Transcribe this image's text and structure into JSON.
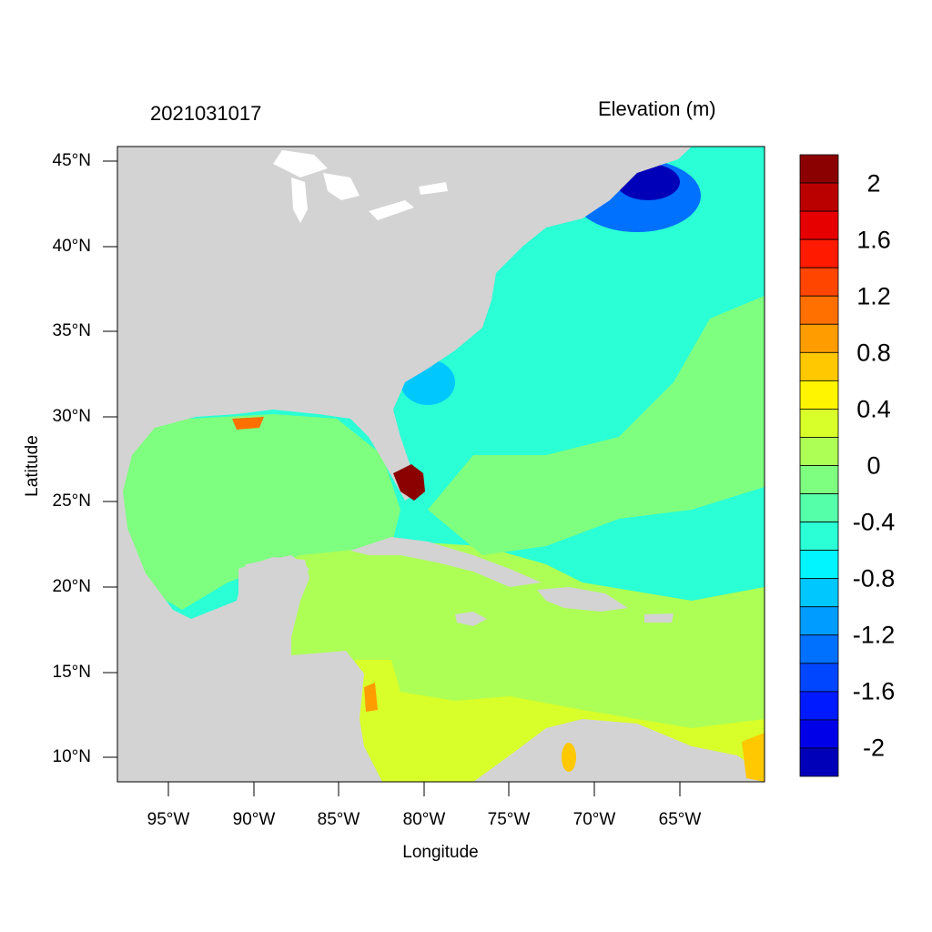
{
  "header": {
    "timestamp": "2021031017",
    "variable": "Elevation (m)"
  },
  "axes": {
    "xlabel": "Longitude",
    "ylabel": "Latitude",
    "lat_ticks": [
      "45°N",
      "40°N",
      "35°N",
      "30°N",
      "25°N",
      "20°N",
      "15°N",
      "10°N"
    ],
    "lon_ticks": [
      "95°W",
      "90°W",
      "85°W",
      "80°W",
      "75°W",
      "70°W",
      "65°W"
    ],
    "lat_range": [
      8.5,
      46
    ],
    "lon_range": [
      -98,
      -60
    ]
  },
  "colorbar": {
    "labels": [
      "2",
      "1.6",
      "1.2",
      "0.8",
      "0.4",
      "0",
      "-0.4",
      "-0.8",
      "-1.2",
      "-1.6",
      "-2"
    ],
    "colors": [
      "#8b0000",
      "#bb0000",
      "#e60000",
      "#ff1a00",
      "#ff4500",
      "#ff7000",
      "#ff9c00",
      "#ffc800",
      "#fff500",
      "#d8ff2a",
      "#adff55",
      "#7fff80",
      "#55ffaa",
      "#2affd5",
      "#00f5ff",
      "#00c8ff",
      "#009cff",
      "#0070ff",
      "#0045ff",
      "#001aff",
      "#0000e8",
      "#0000b8"
    ]
  },
  "colors": {
    "land": "#d3d3d3",
    "lakes": "#ffffff"
  }
}
